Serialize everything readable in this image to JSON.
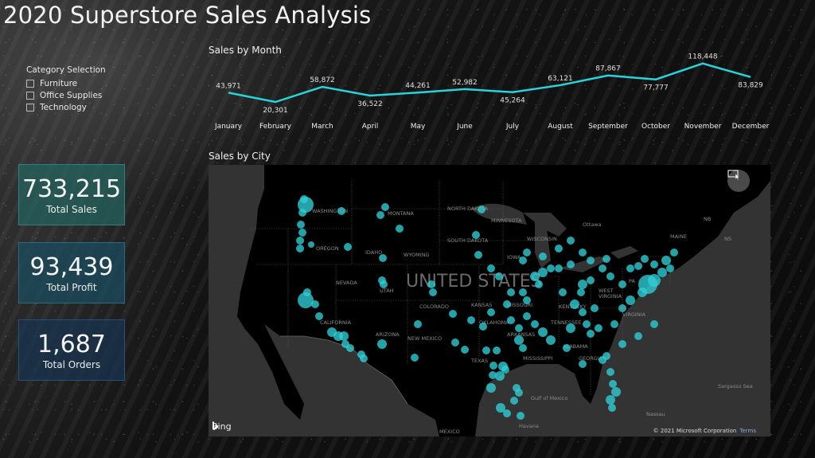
{
  "header": {
    "title": "2020 Superstore Sales Analysis"
  },
  "slicer": {
    "title": "Category Selection",
    "items": [
      {
        "label": "Furniture",
        "checked": false
      },
      {
        "label": "Office Supplies",
        "checked": false
      },
      {
        "label": "Technology",
        "checked": false
      }
    ]
  },
  "kpis": {
    "sales": {
      "value": "733,215",
      "label": "Total Sales"
    },
    "profit": {
      "value": "93,439",
      "label": "Total Profit"
    },
    "orders": {
      "value": "1,687",
      "label": "Total Orders"
    }
  },
  "line_chart": {
    "title": "Sales by Month",
    "color": "#29d3dc"
  },
  "map": {
    "title": "Sales by City",
    "bubble_color": "#2fd0d6",
    "labels": {
      "country": "UNITED STATES",
      "mexico": "MEXICO",
      "ottawa": "Ottawa",
      "gulf": "Gulf of Mexico",
      "havana": "Havana",
      "nassau": "Nassau",
      "sargasso": "Sargasso Sea"
    },
    "states": [
      "WASHINGTON",
      "OREGON",
      "MONTANA",
      "IDAHO",
      "WYOMING",
      "NORTH DAKOTA",
      "SOUTH DAKOTA",
      "MINNESOTA",
      "WISCONSIN",
      "MICHIGAN",
      "IOWA",
      "NEVADA",
      "UTAH",
      "COLORADO",
      "KANSAS",
      "MISSOURI",
      "CALIFORNIA",
      "ARIZONA",
      "NEW MEXICO",
      "OKLAHOMA",
      "TEXAS",
      "ARKANSAS",
      "MISSISSIPPI",
      "ALABAMA",
      "GEORGIA",
      "TENNESSEE",
      "KENTUCKY",
      "WEST VIRGINIA",
      "VIRGINIA",
      "PA",
      "MAINE",
      "NB",
      "NS"
    ],
    "bing_label": "Bing",
    "copyright": "© 2021 Microsoft Corporation",
    "terms": "Terms"
  },
  "chart_data": {
    "type": "line",
    "title": "Sales by Month",
    "categories": [
      "January",
      "February",
      "March",
      "April",
      "May",
      "June",
      "July",
      "August",
      "September",
      "October",
      "November",
      "December"
    ],
    "values": [
      43971,
      20301,
      58872,
      36522,
      44261,
      52982,
      45264,
      63121,
      87867,
      77777,
      118448,
      83829
    ],
    "value_labels": [
      "43,971",
      "20,301",
      "58,872",
      "36,522",
      "44,261",
      "52,982",
      "45,264",
      "63,121",
      "87,867",
      "77,777",
      "118,448",
      "83,829"
    ],
    "xlabel": "",
    "ylabel": "",
    "grid": false,
    "legend": "none"
  }
}
